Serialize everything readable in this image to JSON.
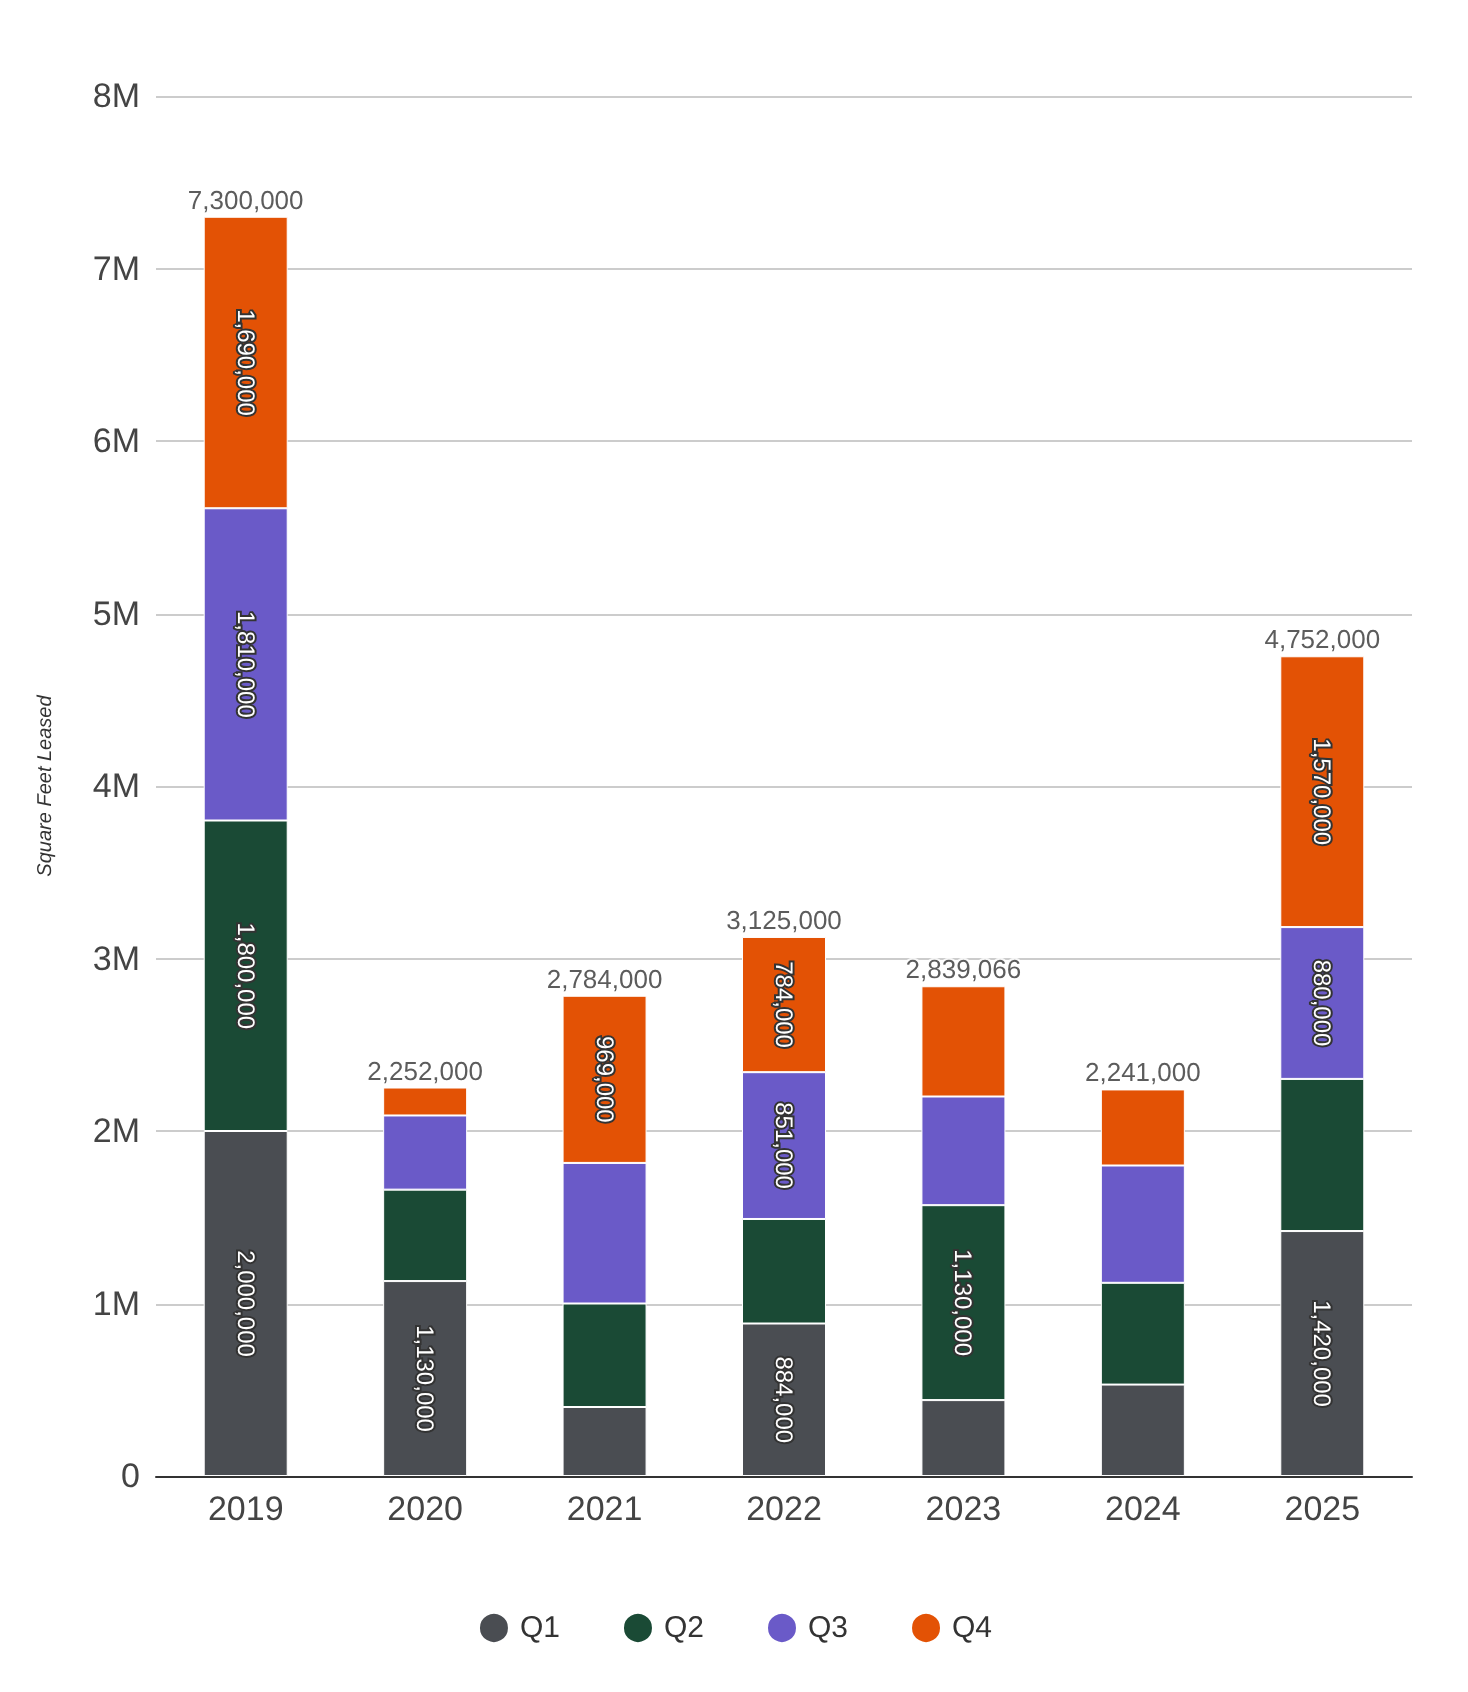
{
  "chart_data": {
    "type": "bar",
    "stacked": true,
    "ylabel": "Square Feet Leased",
    "categories": [
      "2019",
      "2020",
      "2021",
      "2022",
      "2023",
      "2024",
      "2025"
    ],
    "series": [
      {
        "name": "Q1",
        "color": "#4a4d52",
        "values": [
          2000000,
          1130000,
          400000,
          884000,
          440000,
          530000,
          1420000
        ],
        "value_labels": [
          "2,000,000",
          "1,130,000",
          null,
          "884,000",
          null,
          null,
          "1,420,000"
        ]
      },
      {
        "name": "Q2",
        "color": "#1a4a35",
        "values": [
          1800000,
          530000,
          600000,
          606000,
          1130000,
          590000,
          882000
        ],
        "value_labels": [
          "1,800,000",
          null,
          null,
          null,
          "1,130,000",
          null,
          null
        ]
      },
      {
        "name": "Q3",
        "color": "#6a5ac8",
        "values": [
          1810000,
          430000,
          815000,
          851000,
          630000,
          680000,
          880000
        ],
        "value_labels": [
          "1,810,000",
          null,
          null,
          "851,000",
          null,
          null,
          "880,000"
        ]
      },
      {
        "name": "Q4",
        "color": "#e35205",
        "values": [
          1690000,
          162000,
          969000,
          784000,
          639066,
          441000,
          1570000
        ],
        "value_labels": [
          "1,690,000",
          null,
          "969,000",
          "784,000",
          null,
          null,
          "1,570,000"
        ]
      }
    ],
    "totals": [
      "7,300,000",
      "2,252,000",
      "2,784,000",
      "3,125,000",
      "2,839,066",
      "2,241,000",
      "4,752,000"
    ],
    "ylim": [
      0,
      8000000
    ],
    "yticks": [
      {
        "value": 0,
        "label": "0"
      },
      {
        "value": 1000000,
        "label": "1M"
      },
      {
        "value": 2000000,
        "label": "2M"
      },
      {
        "value": 3000000,
        "label": "3M"
      },
      {
        "value": 4000000,
        "label": "4M"
      },
      {
        "value": 5000000,
        "label": "5M"
      },
      {
        "value": 6000000,
        "label": "6M"
      },
      {
        "value": 7000000,
        "label": "7M"
      },
      {
        "value": 8000000,
        "label": "8M"
      }
    ],
    "grid": "y",
    "legend": "bottom",
    "marker": "circle"
  }
}
